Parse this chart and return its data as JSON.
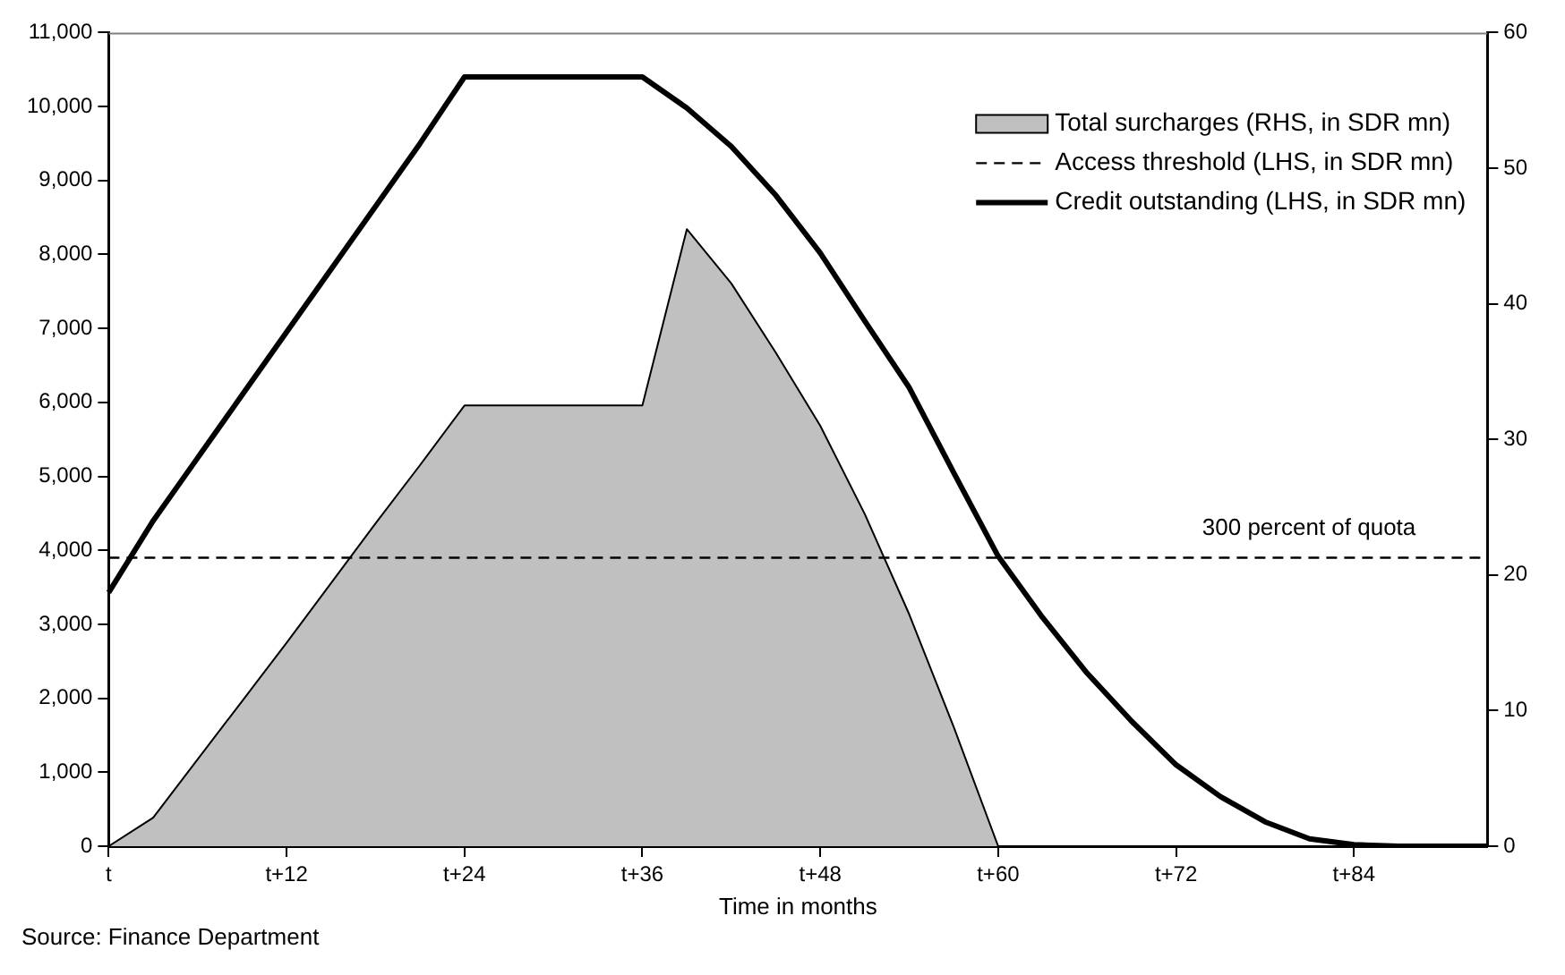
{
  "chart_data": {
    "type": "line",
    "xlabel": "Time in months",
    "legend": "top right",
    "grid": false,
    "categories": [
      "t",
      null,
      null,
      null,
      "t+12",
      null,
      null,
      null,
      "t+24",
      null,
      null,
      null,
      "t+36",
      null,
      null,
      null,
      "t+48",
      null,
      null,
      null,
      "t+60",
      null,
      null,
      null,
      "t+72",
      null,
      null,
      null,
      "t+84",
      null,
      null,
      null
    ],
    "ylim": [
      0,
      11000
    ],
    "yticks": [
      0,
      {
        "value": 1000,
        "label": "1,000"
      },
      {
        "value": 2000,
        "label": "2,000"
      },
      {
        "value": 3000,
        "label": "3,000"
      },
      {
        "value": 4000,
        "label": "4,000"
      },
      {
        "value": 5000,
        "label": "5,000"
      },
      {
        "value": 6000,
        "label": "6,000"
      },
      {
        "value": 7000,
        "label": "7,000"
      },
      {
        "value": 8000,
        "label": "8,000"
      },
      {
        "value": 9000,
        "label": "9,000"
      },
      {
        "value": 10000,
        "label": "10,000"
      },
      {
        "value": 11000,
        "label": "11,000"
      }
    ],
    "y2lim": [
      0,
      60
    ],
    "y2ticks": [
      0,
      10,
      20,
      30,
      40,
      50,
      60
    ],
    "series": [
      {
        "name": "Total surcharges (RHS, in SDR mn)",
        "type": "area",
        "axis": "y2",
        "color": "#c0c0c0",
        "values": [
          0,
          2.1,
          6.4,
          10.7,
          15,
          19.4,
          23.8,
          28.1,
          32.5,
          32.5,
          32.5,
          32.5,
          32.5,
          45.5,
          41.5,
          36.4,
          31,
          24.5,
          17.1,
          8.8,
          0,
          null,
          null,
          null,
          null,
          null,
          null,
          null,
          null,
          null,
          null,
          null
        ]
      },
      {
        "name": "Access threshold (LHS, in SDR mn)",
        "line_style": "dashed",
        "color": "#000000",
        "values": [
          3900,
          3900,
          3900,
          3900,
          3900,
          3900,
          3900,
          3900,
          3900,
          3900,
          3900,
          3900,
          3900,
          3900,
          3900,
          3900,
          3900,
          3900,
          3900,
          3900,
          3900,
          3900,
          3900,
          3900,
          3900,
          3900,
          3900,
          3900,
          3900,
          3900,
          3900,
          3900
        ]
      },
      {
        "name": "Credit outstanding (LHS, in SDR mn)",
        "line_style": "solid",
        "color": "#000000",
        "values": [
          3430,
          4400,
          5250,
          6100,
          6950,
          7800,
          8650,
          9500,
          10400,
          10400,
          10400,
          10400,
          10400,
          9980,
          9460,
          8800,
          8020,
          7100,
          6200,
          5050,
          3920,
          3090,
          2340,
          1690,
          1100,
          670,
          330,
          100,
          20,
          0,
          0,
          0
        ]
      }
    ],
    "annotations": [
      {
        "text": "300 percent of quota",
        "y": 3900
      },
      "Source: Finance Department"
    ]
  }
}
